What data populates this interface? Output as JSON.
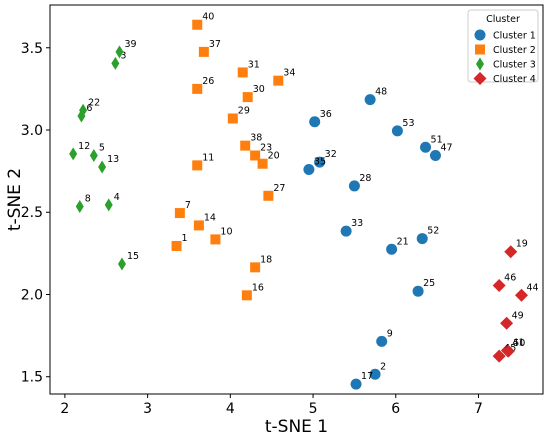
{
  "chart_data": {
    "type": "scatter",
    "xlabel": "t-SNE 1",
    "ylabel": "t-SNE 2",
    "xlim": [
      1.82,
      7.78
    ],
    "ylim": [
      1.395,
      3.76
    ],
    "xticks": [
      2,
      3,
      4,
      5,
      6,
      7
    ],
    "yticks": [
      1.5,
      2.0,
      2.5,
      3.0,
      3.5
    ],
    "legend": {
      "title": "Cluster",
      "placement": "top-right"
    },
    "series": [
      {
        "name": "Cluster 1",
        "marker": "circle",
        "color": "#1f77b4",
        "points": [
          {
            "label": "2",
            "x": 5.75,
            "y": 1.515
          },
          {
            "label": "9",
            "x": 5.83,
            "y": 1.715
          },
          {
            "label": "17",
            "x": 5.52,
            "y": 1.455
          },
          {
            "label": "21",
            "x": 5.95,
            "y": 2.275
          },
          {
            "label": "25",
            "x": 6.27,
            "y": 2.02
          },
          {
            "label": "28",
            "x": 5.5,
            "y": 2.66
          },
          {
            "label": "32",
            "x": 5.08,
            "y": 2.805
          },
          {
            "label": "33",
            "x": 5.4,
            "y": 2.385
          },
          {
            "label": "35",
            "x": 4.95,
            "y": 2.76
          },
          {
            "label": "36",
            "x": 5.02,
            "y": 3.05
          },
          {
            "label": "47",
            "x": 6.48,
            "y": 2.845
          },
          {
            "label": "48",
            "x": 5.69,
            "y": 3.185
          },
          {
            "label": "51",
            "x": 6.36,
            "y": 2.895
          },
          {
            "label": "52",
            "x": 6.32,
            "y": 2.34
          },
          {
            "label": "53",
            "x": 6.02,
            "y": 2.995
          }
        ]
      },
      {
        "name": "Cluster 2",
        "marker": "square",
        "color": "#ff7f0e",
        "points": [
          {
            "label": "1",
            "x": 3.35,
            "y": 2.295
          },
          {
            "label": "7",
            "x": 3.39,
            "y": 2.495
          },
          {
            "label": "10",
            "x": 3.82,
            "y": 2.335
          },
          {
            "label": "11",
            "x": 3.6,
            "y": 2.785
          },
          {
            "label": "14",
            "x": 3.62,
            "y": 2.42
          },
          {
            "label": "16",
            "x": 4.2,
            "y": 1.995
          },
          {
            "label": "18",
            "x": 4.3,
            "y": 2.165
          },
          {
            "label": "20",
            "x": 4.39,
            "y": 2.795
          },
          {
            "label": "23",
            "x": 4.3,
            "y": 2.845
          },
          {
            "label": "26",
            "x": 3.6,
            "y": 3.25
          },
          {
            "label": "27",
            "x": 4.46,
            "y": 2.6
          },
          {
            "label": "29",
            "x": 4.03,
            "y": 3.07
          },
          {
            "label": "30",
            "x": 4.21,
            "y": 3.2
          },
          {
            "label": "31",
            "x": 4.15,
            "y": 3.35
          },
          {
            "label": "34",
            "x": 4.58,
            "y": 3.3
          },
          {
            "label": "37",
            "x": 3.68,
            "y": 3.475
          },
          {
            "label": "38",
            "x": 4.18,
            "y": 2.905
          },
          {
            "label": "40",
            "x": 3.6,
            "y": 3.64
          }
        ]
      },
      {
        "name": "Cluster 3",
        "marker": "diamond",
        "color": "#2ca02c",
        "points": [
          {
            "label": "3",
            "x": 2.61,
            "y": 3.405
          },
          {
            "label": "4",
            "x": 2.53,
            "y": 2.545
          },
          {
            "label": "5",
            "x": 2.35,
            "y": 2.845
          },
          {
            "label": "6",
            "x": 2.2,
            "y": 3.085
          },
          {
            "label": "8",
            "x": 2.18,
            "y": 2.535
          },
          {
            "label": "12",
            "x": 2.1,
            "y": 2.855
          },
          {
            "label": "13",
            "x": 2.45,
            "y": 2.775
          },
          {
            "label": "15",
            "x": 2.69,
            "y": 2.185
          },
          {
            "label": "22",
            "x": 2.22,
            "y": 3.12
          },
          {
            "label": "39",
            "x": 2.66,
            "y": 3.475
          }
        ]
      },
      {
        "name": "Cluster 4",
        "marker": "diamond",
        "color": "#d62728",
        "points": [
          {
            "label": "19",
            "x": 7.39,
            "y": 2.26
          },
          {
            "label": "41",
            "x": 7.35,
            "y": 1.66
          },
          {
            "label": "44",
            "x": 7.52,
            "y": 1.995
          },
          {
            "label": "45",
            "x": 7.25,
            "y": 1.625
          },
          {
            "label": "46",
            "x": 7.25,
            "y": 2.055
          },
          {
            "label": "49",
            "x": 7.34,
            "y": 1.825
          },
          {
            "label": "50",
            "x": 7.36,
            "y": 1.655
          }
        ]
      }
    ]
  }
}
